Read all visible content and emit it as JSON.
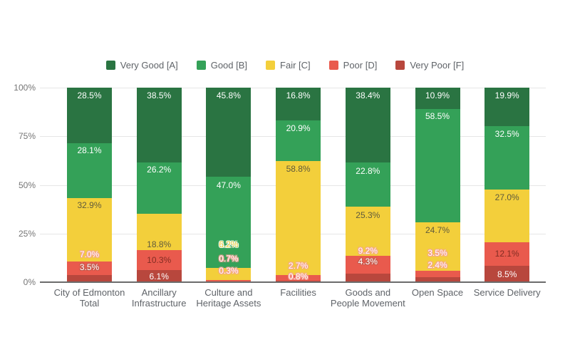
{
  "chart_data": {
    "type": "bar",
    "stacked": true,
    "percent_axis": true,
    "grid": true,
    "legend_position": "top",
    "ylim": [
      0,
      100
    ],
    "y_ticks": [
      "0%",
      "25%",
      "50%",
      "75%",
      "100%"
    ],
    "series": [
      {
        "name": "Very Good [A]",
        "color": "#2a7442"
      },
      {
        "name": "Good [B]",
        "color": "#34a158"
      },
      {
        "name": "Fair [C]",
        "color": "#f3cf3b"
      },
      {
        "name": "Poor [D]",
        "color": "#e95a4d"
      },
      {
        "name": "Very Poor [F]",
        "color": "#b8473d"
      }
    ],
    "categories": [
      {
        "label": "City of Edmonton Total",
        "lines": [
          "City of Edmonton",
          "Total"
        ]
      },
      {
        "label": "Ancillary Infrastructure",
        "lines": [
          "Ancillary",
          "Infrastructure"
        ]
      },
      {
        "label": "Culture and Heritage Assets",
        "lines": [
          "Culture and",
          "Heritage Assets"
        ]
      },
      {
        "label": "Facilities",
        "lines": [
          "Facilities"
        ]
      },
      {
        "label": "Goods and People Movement",
        "lines": [
          "Goods and",
          "People Movement"
        ]
      },
      {
        "label": "Open Space",
        "lines": [
          "Open Space"
        ]
      },
      {
        "label": "Service Delivery",
        "lines": [
          "Service Delivery"
        ]
      }
    ],
    "bars": [
      {
        "category": "City of Edmonton Total",
        "segments": [
          {
            "series": "Very Poor [F]",
            "value": 3.5,
            "label": "3.5%",
            "label_style": "halo-red",
            "label_y": 7.7
          },
          {
            "series": "Poor [D]",
            "value": 7.0,
            "label": "7.0%",
            "label_style": "halo-pink",
            "label_y": 14.3
          },
          {
            "series": "Fair [C]",
            "value": 32.9,
            "label": "32.9%",
            "label_style": "dark-olive",
            "label_y": 39.4
          },
          {
            "series": "Good [B]",
            "value": 28.1,
            "label": "28.1%",
            "label_style": "white",
            "label_y": 67.8
          },
          {
            "series": "Very Good [A]",
            "value": 28.5,
            "label": "28.5%",
            "label_style": "white",
            "label_y": 96.0
          }
        ]
      },
      {
        "category": "Ancillary Infrastructure",
        "segments": [
          {
            "series": "Very Poor [F]",
            "value": 6.1,
            "label": "6.1%",
            "label_style": "white",
            "label_y": 2.9
          },
          {
            "series": "Poor [D]",
            "value": 10.3,
            "label": "10.3%",
            "label_style": "dark-red",
            "label_y": 11.5
          },
          {
            "series": "Fair [C]",
            "value": 18.8,
            "label": "18.8%",
            "label_style": "dark-olive",
            "label_y": 19.4
          },
          {
            "series": "Good [B]",
            "value": 26.2,
            "label": "26.2%",
            "label_style": "white",
            "label_y": 58.0
          },
          {
            "series": "Very Good [A]",
            "value": 38.5,
            "label": "38.5%",
            "label_style": "white",
            "label_y": 96.0
          }
        ]
      },
      {
        "category": "Culture and Heritage Assets",
        "segments": [
          {
            "series": "Very Poor [F]",
            "value": 0.3,
            "label": "0.3%",
            "label_style": "halo-pink",
            "label_y": 5.9
          },
          {
            "series": "Poor [D]",
            "value": 0.7,
            "label": "0.7%",
            "label_style": "halo-pink",
            "label_y": 12.1
          },
          {
            "series": "Fair [C]",
            "value": 6.2,
            "label": "6.2%",
            "label_style": "halo-yellow",
            "label_y": 19.4
          },
          {
            "series": "Good [B]",
            "value": 47.0,
            "label": "47.0%",
            "label_style": "white",
            "label_y": 50.0
          },
          {
            "series": "Very Good [A]",
            "value": 45.8,
            "label": "45.8%",
            "label_style": "white",
            "label_y": 96.0
          }
        ]
      },
      {
        "category": "Facilities",
        "segments": [
          {
            "series": "Very Poor [F]",
            "value": 0.8,
            "label": "0.8%",
            "label_style": "halo-pink",
            "label_y": 2.9
          },
          {
            "series": "Poor [D]",
            "value": 2.7,
            "label": "2.7%",
            "label_style": "halo-pink",
            "label_y": 8.4
          },
          {
            "series": "Fair [C]",
            "value": 58.8,
            "label": "58.8%",
            "label_style": "dark-olive",
            "label_y": 58.2
          },
          {
            "series": "Good [B]",
            "value": 20.9,
            "label": "20.9%",
            "label_style": "white",
            "label_y": 79.2
          },
          {
            "series": "Very Good [A]",
            "value": 16.8,
            "label": "16.8%",
            "label_style": "white",
            "label_y": 96.0
          }
        ]
      },
      {
        "category": "Goods and People Movement",
        "segments": [
          {
            "series": "Very Poor [F]",
            "value": 4.3,
            "label": "4.3%",
            "label_style": "halo-red",
            "label_y": 10.6
          },
          {
            "series": "Poor [D]",
            "value": 9.2,
            "label": "9.2%",
            "label_style": "halo-pink",
            "label_y": 16.1
          },
          {
            "series": "Fair [C]",
            "value": 25.3,
            "label": "25.3%",
            "label_style": "dark-olive",
            "label_y": 34.5
          },
          {
            "series": "Good [B]",
            "value": 22.8,
            "label": "22.8%",
            "label_style": "white",
            "label_y": 57.2
          },
          {
            "series": "Very Good [A]",
            "value": 38.4,
            "label": "38.4%",
            "label_style": "white",
            "label_y": 96.0
          }
        ]
      },
      {
        "category": "Open Space",
        "segments": [
          {
            "series": "Very Poor [F]",
            "value": 2.4,
            "label": "2.4%",
            "label_style": "halo-pink",
            "label_y": 8.8
          },
          {
            "series": "Poor [D]",
            "value": 3.5,
            "label": "3.5%",
            "label_style": "halo-pink",
            "label_y": 15.0
          },
          {
            "series": "Fair [C]",
            "value": 24.7,
            "label": "24.7%",
            "label_style": "dark-olive",
            "label_y": 26.7
          },
          {
            "series": "Good [B]",
            "value": 58.5,
            "label": "58.5%",
            "label_style": "white",
            "label_y": 85.2
          },
          {
            "series": "Very Good [A]",
            "value": 10.9,
            "label": "10.9%",
            "label_style": "white",
            "label_y": 96.0
          }
        ]
      },
      {
        "category": "Service Delivery",
        "segments": [
          {
            "series": "Very Poor [F]",
            "value": 8.5,
            "label": "8.5%",
            "label_style": "white",
            "label_y": 4.0
          },
          {
            "series": "Poor [D]",
            "value": 12.1,
            "label": "12.1%",
            "label_style": "dark-red",
            "label_y": 14.5
          },
          {
            "series": "Fair [C]",
            "value": 27.0,
            "label": "27.0%",
            "label_style": "dark-olive",
            "label_y": 43.6
          },
          {
            "series": "Good [B]",
            "value": 32.5,
            "label": "32.5%",
            "label_style": "white",
            "label_y": 76.2
          },
          {
            "series": "Very Good [A]",
            "value": 19.9,
            "label": "19.9%",
            "label_style": "white",
            "label_y": 95.8
          }
        ]
      }
    ]
  }
}
